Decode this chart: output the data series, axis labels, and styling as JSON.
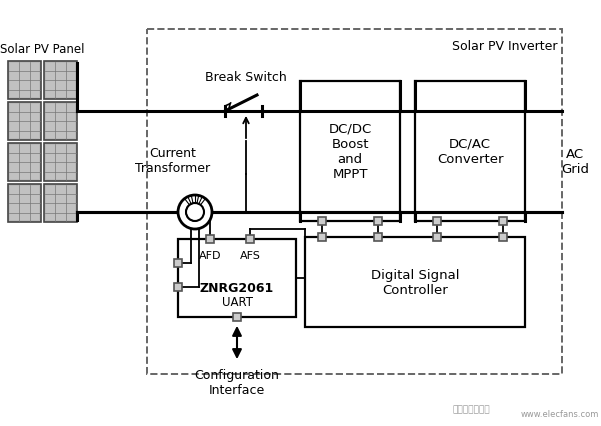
{
  "bg_color": "#ffffff",
  "title": "Solar PV Inverter",
  "panel_label": "Solar PV Panel",
  "ac_label": "AC\nGrid",
  "break_switch_label": "Break Switch",
  "current_transformer_label": "Current\nTransformer",
  "dc_dc_label": "DC/DC\nBoost\nand\nMPPT",
  "dc_ac_label": "DC/AC\nConverter",
  "dsc_label": "Digital Signal\nController",
  "znrg_label": "ZNRG2061",
  "afd_label": "AFD",
  "afs_label": "AFS",
  "uart_label": "UART",
  "config_label": "Configuration\nInterface",
  "line_color": "#000000",
  "dash_color": "#666666",
  "panel_face": "#b0b0b0",
  "panel_edge": "#555555",
  "sq_face": "#cccccc",
  "sq_edge": "#555555",
  "watermark_color": "#999999"
}
